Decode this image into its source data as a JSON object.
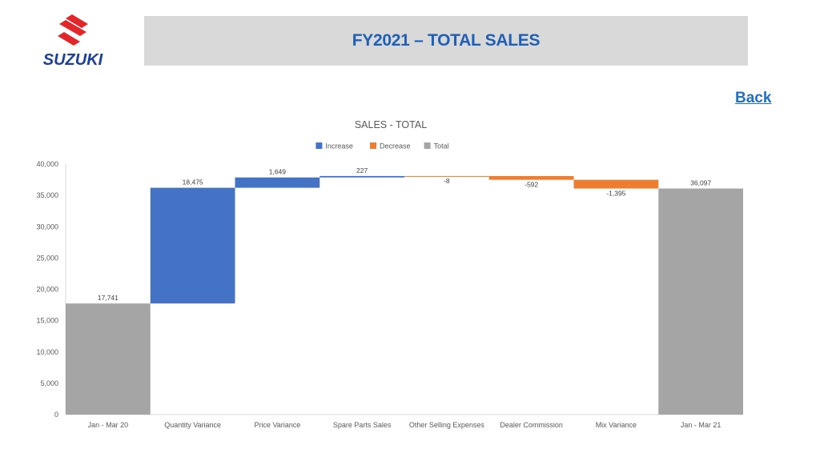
{
  "header": {
    "brand_name": "SUZUKI",
    "title": "FY2021 – TOTAL SALES",
    "back_label": "Back"
  },
  "chart_data": {
    "type": "bar",
    "subtype": "waterfall",
    "title": "SALES - TOTAL",
    "xlabel": "",
    "ylabel": "",
    "ylim": [
      0,
      40000
    ],
    "yticks": [
      0,
      5000,
      10000,
      15000,
      20000,
      25000,
      30000,
      35000,
      40000
    ],
    "ytick_labels": [
      "0",
      "5,000",
      "10,000",
      "15,000",
      "20,000",
      "25,000",
      "30,000",
      "35,000",
      "40,000"
    ],
    "grid": false,
    "legend_position": "top-center",
    "legend": [
      {
        "name": "Increase",
        "color": "#4472c4"
      },
      {
        "name": "Decrease",
        "color": "#ed7d31"
      },
      {
        "name": "Total",
        "color": "#a5a5a5"
      }
    ],
    "categories": [
      "Jan - Mar 20",
      "Quantity Variance",
      "Price Variance",
      "Spare Parts Sales",
      "Other Selling Expenses",
      "Dealer Commission",
      "Mix Variance",
      "Jan - Mar 21"
    ],
    "values": [
      17741,
      18475,
      1649,
      227,
      -8,
      -592,
      -1395,
      36097
    ],
    "kinds": [
      "total",
      "increase",
      "increase",
      "increase",
      "decrease",
      "decrease",
      "decrease",
      "total"
    ],
    "data_labels": [
      "17,741",
      "18,475",
      "1,649",
      "227",
      "-8",
      "-592",
      "-1,395",
      "36,097"
    ]
  }
}
